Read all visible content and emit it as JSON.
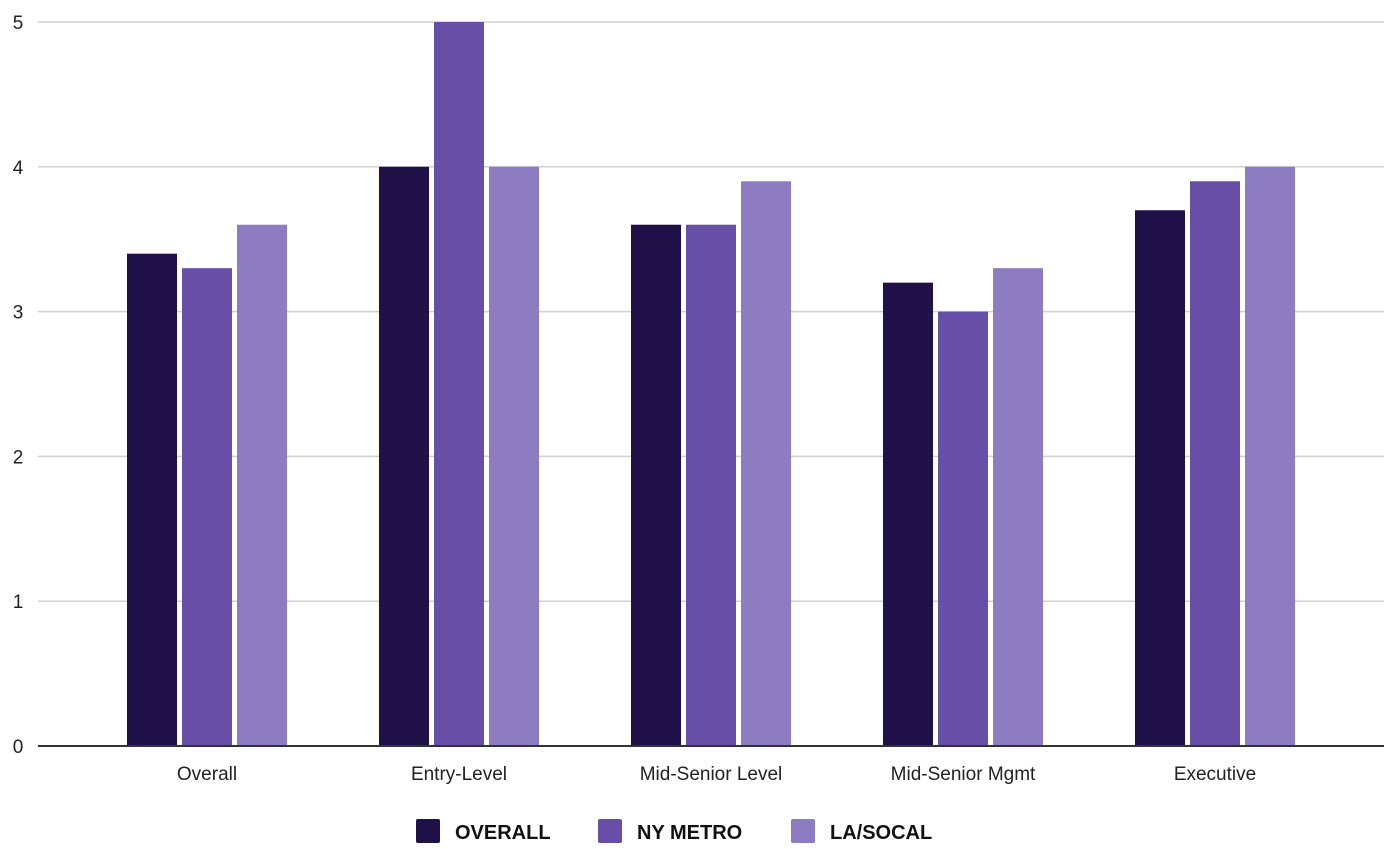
{
  "chart_data": {
    "type": "bar",
    "title": "",
    "xlabel": "",
    "ylabel": "",
    "categories": [
      "Overall",
      "Entry-Level",
      "Mid-Senior Level",
      "Mid-Senior Mgmt",
      "Executive"
    ],
    "series": [
      {
        "name": "OVERALL",
        "color": "#1f1147",
        "values": [
          3.4,
          4.0,
          3.6,
          3.2,
          3.7
        ]
      },
      {
        "name": "NY METRO",
        "color": "#674ea7",
        "values": [
          3.3,
          5.0,
          3.6,
          3.0,
          3.9
        ]
      },
      {
        "name": "LA/SOCAL",
        "color": "#8e7cc3",
        "values": [
          3.6,
          4.0,
          3.9,
          3.3,
          4.0
        ]
      }
    ],
    "ylim": [
      0,
      5
    ],
    "yticks": [
      0,
      1,
      2,
      3,
      4,
      5
    ],
    "grid": true,
    "legend_position": "bottom-center"
  }
}
